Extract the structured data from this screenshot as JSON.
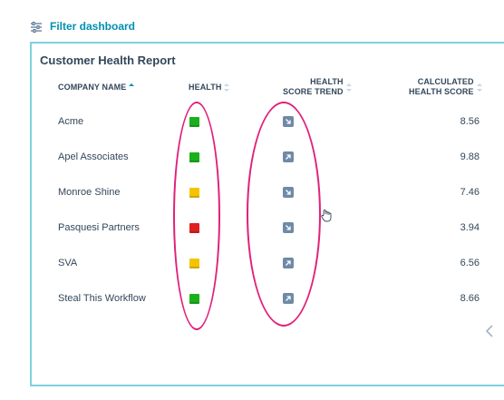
{
  "filter": {
    "label": "Filter dashboard",
    "icon": "filter-sliders-icon"
  },
  "report": {
    "title": "Customer Health Report",
    "columns": {
      "company": "COMPANY NAME",
      "health": "HEALTH",
      "trend_line1": "HEALTH",
      "trend_line2": "SCORE TREND",
      "score_line1": "CALCULATED",
      "score_line2": "HEALTH SCORE"
    },
    "rows": [
      {
        "company": "Acme",
        "health": "green",
        "trend": "down",
        "score": "8.56"
      },
      {
        "company": "Apel Associates",
        "health": "green",
        "trend": "up",
        "score": "9.88"
      },
      {
        "company": "Monroe Shine",
        "health": "yellow",
        "trend": "down",
        "score": "7.46"
      },
      {
        "company": "Pasquesi Partners",
        "health": "red",
        "trend": "down",
        "score": "3.94"
      },
      {
        "company": "SVA",
        "health": "yellow",
        "trend": "up",
        "score": "6.56"
      },
      {
        "company": "Steal This Workflow",
        "health": "green",
        "trend": "up",
        "score": "8.66"
      }
    ]
  },
  "colors": {
    "green": "#1ab01a",
    "yellow": "#f5c400",
    "red": "#e0201e",
    "accent": "#0091ae",
    "border": "#7fd1de",
    "highlight": "#e0217a",
    "trend_bg": "#6e8aa6"
  },
  "icons": {
    "next": "chevron-left-icon",
    "cursor": "hand-pointer-icon"
  }
}
